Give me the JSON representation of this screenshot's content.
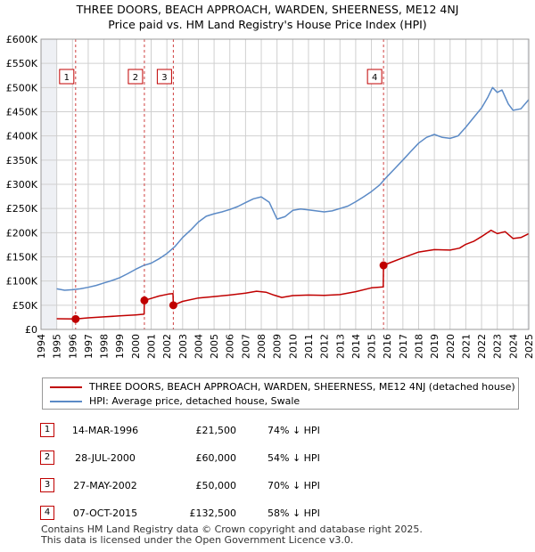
{
  "title_line1": "THREE DOORS, BEACH APPROACH, WARDEN, SHEERNESS, ME12 4NJ",
  "title_line2": "Price paid vs. HM Land Registry's House Price Index (HPI)",
  "chart_data": {
    "type": "line",
    "title": "THREE DOORS, BEACH APPROACH, WARDEN, SHEERNESS, ME12 4NJ — Price paid vs. HM Land Registry's House Price Index (HPI)",
    "xlabel": "",
    "ylabel": "",
    "xlim": [
      1994,
      2025
    ],
    "ylim": [
      0,
      600000
    ],
    "x_ticks": [
      "1994",
      "1995",
      "1996",
      "1997",
      "1998",
      "1999",
      "2000",
      "2001",
      "2002",
      "2003",
      "2004",
      "2005",
      "2006",
      "2007",
      "2008",
      "2009",
      "2010",
      "2011",
      "2012",
      "2013",
      "2014",
      "2015",
      "2016",
      "2017",
      "2018",
      "2019",
      "2020",
      "2021",
      "2022",
      "2023",
      "2024",
      "2025"
    ],
    "y_ticks": [
      {
        "value": 0,
        "label": "£0"
      },
      {
        "value": 50000,
        "label": "£50K"
      },
      {
        "value": 100000,
        "label": "£100K"
      },
      {
        "value": 150000,
        "label": "£150K"
      },
      {
        "value": 200000,
        "label": "£200K"
      },
      {
        "value": 250000,
        "label": "£250K"
      },
      {
        "value": 300000,
        "label": "£300K"
      },
      {
        "value": 350000,
        "label": "£350K"
      },
      {
        "value": 400000,
        "label": "£400K"
      },
      {
        "value": 450000,
        "label": "£450K"
      },
      {
        "value": 500000,
        "label": "£500K"
      },
      {
        "value": 550000,
        "label": "£550K"
      },
      {
        "value": 600000,
        "label": "£600K"
      }
    ],
    "grid": true,
    "series": [
      {
        "name": "THREE DOORS, BEACH APPROACH, WARDEN, SHEERNESS, ME12 4NJ (detached house)",
        "color": "#c00000",
        "points": [
          [
            1995.0,
            22000
          ],
          [
            1996.2,
            21500
          ],
          [
            1997.0,
            24000
          ],
          [
            1998.0,
            26000
          ],
          [
            1999.0,
            28000
          ],
          [
            2000.0,
            30000
          ],
          [
            2000.55,
            31500
          ],
          [
            2000.57,
            60000
          ],
          [
            2001.0,
            64000
          ],
          [
            2001.5,
            69000
          ],
          [
            2002.1,
            73000
          ],
          [
            2002.39,
            74000
          ],
          [
            2002.41,
            50000
          ],
          [
            2003.0,
            58000
          ],
          [
            2004.0,
            65000
          ],
          [
            2005.0,
            68000
          ],
          [
            2006.0,
            71000
          ],
          [
            2007.0,
            75000
          ],
          [
            2007.7,
            79000
          ],
          [
            2008.3,
            77000
          ],
          [
            2008.8,
            71000
          ],
          [
            2009.3,
            66000
          ],
          [
            2010.0,
            70000
          ],
          [
            2011.0,
            71000
          ],
          [
            2012.0,
            70500
          ],
          [
            2013.0,
            72000
          ],
          [
            2014.0,
            78000
          ],
          [
            2015.0,
            86000
          ],
          [
            2015.75,
            88000
          ],
          [
            2015.77,
            132500
          ],
          [
            2016.2,
            138000
          ],
          [
            2017.0,
            148000
          ],
          [
            2018.0,
            160000
          ],
          [
            2019.0,
            165000
          ],
          [
            2020.0,
            164000
          ],
          [
            2020.6,
            168000
          ],
          [
            2021.0,
            176000
          ],
          [
            2021.5,
            182000
          ],
          [
            2022.0,
            192000
          ],
          [
            2022.6,
            205000
          ],
          [
            2023.0,
            198000
          ],
          [
            2023.5,
            202000
          ],
          [
            2024.0,
            188000
          ],
          [
            2024.5,
            190000
          ],
          [
            2025.0,
            198000
          ]
        ]
      },
      {
        "name": "HPI: Average price, detached house, Swale",
        "color": "#5b8ac6",
        "points": [
          [
            1995.0,
            84000
          ],
          [
            1995.5,
            81000
          ],
          [
            1996.0,
            82000
          ],
          [
            1996.5,
            84000
          ],
          [
            1997.0,
            87000
          ],
          [
            1997.5,
            91000
          ],
          [
            1998.0,
            96000
          ],
          [
            1998.5,
            101000
          ],
          [
            1999.0,
            107000
          ],
          [
            1999.5,
            115000
          ],
          [
            2000.0,
            124000
          ],
          [
            2000.5,
            132000
          ],
          [
            2001.0,
            137000
          ],
          [
            2001.5,
            146000
          ],
          [
            2002.0,
            157000
          ],
          [
            2002.5,
            171000
          ],
          [
            2003.0,
            190000
          ],
          [
            2003.5,
            205000
          ],
          [
            2004.0,
            222000
          ],
          [
            2004.5,
            234000
          ],
          [
            2005.0,
            239000
          ],
          [
            2005.5,
            243000
          ],
          [
            2006.0,
            248000
          ],
          [
            2006.5,
            254000
          ],
          [
            2007.0,
            262000
          ],
          [
            2007.5,
            270000
          ],
          [
            2008.0,
            274000
          ],
          [
            2008.5,
            263000
          ],
          [
            2009.0,
            228000
          ],
          [
            2009.5,
            233000
          ],
          [
            2010.0,
            246000
          ],
          [
            2010.5,
            249000
          ],
          [
            2011.0,
            247000
          ],
          [
            2011.5,
            245000
          ],
          [
            2012.0,
            243000
          ],
          [
            2012.5,
            245000
          ],
          [
            2013.0,
            250000
          ],
          [
            2013.5,
            255000
          ],
          [
            2014.0,
            264000
          ],
          [
            2014.5,
            274000
          ],
          [
            2015.0,
            285000
          ],
          [
            2015.5,
            298000
          ],
          [
            2016.0,
            316000
          ],
          [
            2016.5,
            333000
          ],
          [
            2017.0,
            350000
          ],
          [
            2017.5,
            368000
          ],
          [
            2018.0,
            385000
          ],
          [
            2018.5,
            397000
          ],
          [
            2019.0,
            403000
          ],
          [
            2019.5,
            397000
          ],
          [
            2020.0,
            395000
          ],
          [
            2020.5,
            400000
          ],
          [
            2021.0,
            418000
          ],
          [
            2021.5,
            438000
          ],
          [
            2022.0,
            458000
          ],
          [
            2022.4,
            480000
          ],
          [
            2022.7,
            500000
          ],
          [
            2023.0,
            490000
          ],
          [
            2023.3,
            495000
          ],
          [
            2023.7,
            466000
          ],
          [
            2024.0,
            453000
          ],
          [
            2024.5,
            456000
          ],
          [
            2025.0,
            475000
          ]
        ]
      }
    ],
    "sales": [
      {
        "id": "1",
        "x": 1996.2,
        "price": 21500,
        "vline_x": 1996.2
      },
      {
        "id": "2",
        "x": 2000.57,
        "price": 60000,
        "vline_x": 2000.57
      },
      {
        "id": "3",
        "x": 2002.41,
        "price": 50000,
        "vline_x": 2002.41
      },
      {
        "id": "4",
        "x": 2015.77,
        "price": 132500,
        "vline_x": 2015.77
      }
    ]
  },
  "legend": {
    "property_label": "THREE DOORS, BEACH APPROACH, WARDEN, SHEERNESS, ME12 4NJ (detached house)",
    "property_color": "#c00000",
    "hpi_label": "HPI: Average price, detached house, Swale",
    "hpi_color": "#5b8ac6"
  },
  "transactions": [
    {
      "num": "1",
      "date": "14-MAR-1996",
      "price": "£21,500",
      "hpi": "74% ↓ HPI"
    },
    {
      "num": "2",
      "date": "28-JUL-2000",
      "price": "£60,000",
      "hpi": "54% ↓ HPI"
    },
    {
      "num": "3",
      "date": "27-MAY-2002",
      "price": "£50,000",
      "hpi": "70% ↓ HPI"
    },
    {
      "num": "4",
      "date": "07-OCT-2015",
      "price": "£132,500",
      "hpi": "58% ↓ HPI"
    }
  ],
  "footer": {
    "line1": "Contains HM Land Registry data © Crown copyright and database right 2025.",
    "line2": "This data is licensed under the Open Government Licence v3.0."
  }
}
